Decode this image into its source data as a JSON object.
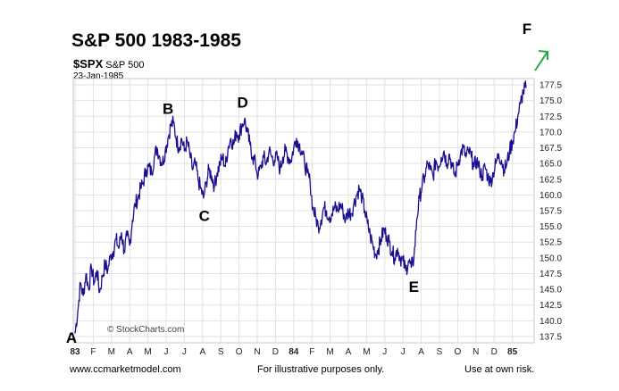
{
  "header": {
    "title": "S&P 500 1983-1985",
    "symbol": "$SPX",
    "symbol_name": "S&P 500",
    "date": "23-Jan-1985"
  },
  "footer": {
    "website": "www.ccmarketmodel.com",
    "disclaimer": "For illustrative purposes only.",
    "risk": "Use at own risk."
  },
  "watermark": "© StockCharts.com",
  "colors": {
    "price_line": "#1a0f8f",
    "arrow": "#22aa44",
    "grid": "#e2e2e2"
  },
  "chart_data": {
    "type": "line",
    "title": "S&P 500 1983-1985",
    "ylim": [
      136.5,
      178.5
    ],
    "y_ticks": [
      137.5,
      140.0,
      142.5,
      145.0,
      147.5,
      150.0,
      152.5,
      155.0,
      157.5,
      160.0,
      162.5,
      165.0,
      167.5,
      170.0,
      172.5,
      175.0,
      177.5
    ],
    "x_ticks": [
      "83",
      "F",
      "M",
      "A",
      "M",
      "J",
      "J",
      "A",
      "S",
      "O",
      "N",
      "D",
      "84",
      "F",
      "M",
      "A",
      "M",
      "J",
      "J",
      "A",
      "S",
      "O",
      "N",
      "D",
      "85"
    ],
    "x_tick_month_index": [
      0,
      1,
      2,
      3,
      4,
      5,
      6,
      7,
      8,
      9,
      10,
      11,
      12,
      13,
      14,
      15,
      16,
      17,
      18,
      19,
      20,
      21,
      22,
      23,
      24
    ],
    "series": [
      {
        "points": [
          [
            0.0,
            138.0
          ],
          [
            0.15,
            141.5
          ],
          [
            0.3,
            146.0
          ],
          [
            0.45,
            144.0
          ],
          [
            0.6,
            147.5
          ],
          [
            0.75,
            145.0
          ],
          [
            0.9,
            148.5
          ],
          [
            1.05,
            146.0
          ],
          [
            1.2,
            148.0
          ],
          [
            1.35,
            144.5
          ],
          [
            1.5,
            147.0
          ],
          [
            1.65,
            149.0
          ],
          [
            1.8,
            148.0
          ],
          [
            1.95,
            150.5
          ],
          [
            2.1,
            151.0
          ],
          [
            2.25,
            153.0
          ],
          [
            2.4,
            151.5
          ],
          [
            2.55,
            154.0
          ],
          [
            2.7,
            151.0
          ],
          [
            2.85,
            153.5
          ],
          [
            3.0,
            152.0
          ],
          [
            3.15,
            156.0
          ],
          [
            3.3,
            158.5
          ],
          [
            3.45,
            159.5
          ],
          [
            3.6,
            161.0
          ],
          [
            3.75,
            162.0
          ],
          [
            3.9,
            164.0
          ],
          [
            4.05,
            164.5
          ],
          [
            4.2,
            163.5
          ],
          [
            4.35,
            166.0
          ],
          [
            4.5,
            167.5
          ],
          [
            4.65,
            166.0
          ],
          [
            4.8,
            165.0
          ],
          [
            4.95,
            167.0
          ],
          [
            5.1,
            169.0
          ],
          [
            5.25,
            171.0
          ],
          [
            5.4,
            171.5
          ],
          [
            5.55,
            169.0
          ],
          [
            5.7,
            167.5
          ],
          [
            5.85,
            169.0
          ],
          [
            6.0,
            167.0
          ],
          [
            6.15,
            168.5
          ],
          [
            6.3,
            166.5
          ],
          [
            6.45,
            164.0
          ],
          [
            6.6,
            165.0
          ],
          [
            6.75,
            162.5
          ],
          [
            6.9,
            161.0
          ],
          [
            7.05,
            159.5
          ],
          [
            7.2,
            162.0
          ],
          [
            7.35,
            164.0
          ],
          [
            7.5,
            163.0
          ],
          [
            7.65,
            161.5
          ],
          [
            7.8,
            163.5
          ],
          [
            7.95,
            165.0
          ],
          [
            8.1,
            166.0
          ],
          [
            8.25,
            164.5
          ],
          [
            8.4,
            167.5
          ],
          [
            8.55,
            169.0
          ],
          [
            8.7,
            168.0
          ],
          [
            8.85,
            170.0
          ],
          [
            9.0,
            169.5
          ],
          [
            9.15,
            171.0
          ],
          [
            9.3,
            172.0
          ],
          [
            9.45,
            170.0
          ],
          [
            9.6,
            168.0
          ],
          [
            9.75,
            166.0
          ],
          [
            9.9,
            165.0
          ],
          [
            10.05,
            163.0
          ],
          [
            10.2,
            164.5
          ],
          [
            10.35,
            166.0
          ],
          [
            10.5,
            165.0
          ],
          [
            10.65,
            167.0
          ],
          [
            10.8,
            166.0
          ],
          [
            10.95,
            165.5
          ],
          [
            11.1,
            166.0
          ],
          [
            11.25,
            164.0
          ],
          [
            11.4,
            166.0
          ],
          [
            11.55,
            167.0
          ],
          [
            11.7,
            166.0
          ],
          [
            11.85,
            165.5
          ],
          [
            12.0,
            167.5
          ],
          [
            12.15,
            169.0
          ],
          [
            12.3,
            168.0
          ],
          [
            12.45,
            167.0
          ],
          [
            12.6,
            165.0
          ],
          [
            12.75,
            163.5
          ],
          [
            12.9,
            162.0
          ],
          [
            13.05,
            158.0
          ],
          [
            13.2,
            156.5
          ],
          [
            13.35,
            155.0
          ],
          [
            13.5,
            156.0
          ],
          [
            13.65,
            158.0
          ],
          [
            13.8,
            157.5
          ],
          [
            13.95,
            156.5
          ],
          [
            14.1,
            157.0
          ],
          [
            14.25,
            158.0
          ],
          [
            14.4,
            157.5
          ],
          [
            14.55,
            158.5
          ],
          [
            14.7,
            157.5
          ],
          [
            14.85,
            156.0
          ],
          [
            15.0,
            157.5
          ],
          [
            15.15,
            157.0
          ],
          [
            15.3,
            158.5
          ],
          [
            15.45,
            160.0
          ],
          [
            15.6,
            161.0
          ],
          [
            15.75,
            159.5
          ],
          [
            15.9,
            157.5
          ],
          [
            16.05,
            155.5
          ],
          [
            16.2,
            153.5
          ],
          [
            16.35,
            152.0
          ],
          [
            16.5,
            150.5
          ],
          [
            16.65,
            151.5
          ],
          [
            16.8,
            153.0
          ],
          [
            16.95,
            154.5
          ],
          [
            17.1,
            153.5
          ],
          [
            17.25,
            152.5
          ],
          [
            17.4,
            151.0
          ],
          [
            17.55,
            150.0
          ],
          [
            17.7,
            151.5
          ],
          [
            17.85,
            150.0
          ],
          [
            18.0,
            149.5
          ],
          [
            18.15,
            148.0
          ],
          [
            18.3,
            149.5
          ],
          [
            18.45,
            148.5
          ],
          [
            18.6,
            150.0
          ],
          [
            18.75,
            156.0
          ],
          [
            18.9,
            159.5
          ],
          [
            19.05,
            161.5
          ],
          [
            19.2,
            163.0
          ],
          [
            19.35,
            165.0
          ],
          [
            19.5,
            164.0
          ],
          [
            19.65,
            163.0
          ],
          [
            19.8,
            165.5
          ],
          [
            19.95,
            164.5
          ],
          [
            20.1,
            166.0
          ],
          [
            20.25,
            167.0
          ],
          [
            20.4,
            165.0
          ],
          [
            20.55,
            166.5
          ],
          [
            20.7,
            164.5
          ],
          [
            20.85,
            163.0
          ],
          [
            21.0,
            165.0
          ],
          [
            21.15,
            166.5
          ],
          [
            21.3,
            167.5
          ],
          [
            21.45,
            166.0
          ],
          [
            21.6,
            167.0
          ],
          [
            21.75,
            166.0
          ],
          [
            21.9,
            164.5
          ],
          [
            22.05,
            165.5
          ],
          [
            22.2,
            164.0
          ],
          [
            22.35,
            163.0
          ],
          [
            22.5,
            164.5
          ],
          [
            22.65,
            163.0
          ],
          [
            22.8,
            162.0
          ],
          [
            22.95,
            163.5
          ],
          [
            23.1,
            165.0
          ],
          [
            23.25,
            166.5
          ],
          [
            23.4,
            165.5
          ],
          [
            23.55,
            164.0
          ],
          [
            23.7,
            165.0
          ],
          [
            23.85,
            167.0
          ],
          [
            24.0,
            168.5
          ],
          [
            24.15,
            170.0
          ],
          [
            24.3,
            172.5
          ],
          [
            24.45,
            174.5
          ],
          [
            24.6,
            176.5
          ],
          [
            24.75,
            177.0
          ]
        ]
      }
    ],
    "annotations": [
      {
        "label": "A",
        "x": 0.0,
        "y": 137.0
      },
      {
        "label": "B",
        "x": 5.3,
        "y": 171.5
      },
      {
        "label": "C",
        "x": 7.0,
        "y": 159.0
      },
      {
        "label": "D",
        "x": 9.2,
        "y": 172.5
      },
      {
        "label": "E",
        "x": 18.3,
        "y": 148.0
      },
      {
        "label": "F",
        "x": 24.9,
        "y": 178.0
      }
    ]
  }
}
